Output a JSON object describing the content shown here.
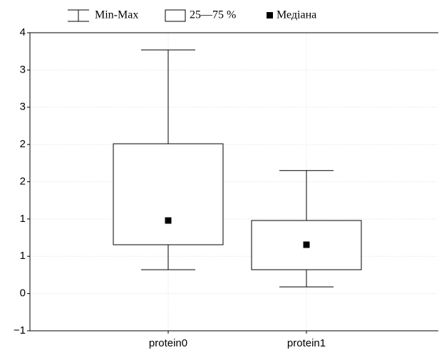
{
  "chart_data": {
    "type": "box",
    "legend": {
      "whisker": "Min-Max",
      "box": "25—75 %",
      "median": "Медіана"
    },
    "categories": [
      "protein0",
      "protein1"
    ],
    "min": [
      0.32,
      0.09
    ],
    "q1": [
      0.655,
      0.32
    ],
    "median": [
      0.98,
      0.655
    ],
    "q3": [
      2.01,
      0.98
    ],
    "max": [
      3.27,
      1.65
    ],
    "ylim": [
      -0.5,
      3.5
    ],
    "yticks": [
      {
        "value": 3.5,
        "label": "4"
      },
      3,
      {
        "value": 2.5,
        "label": "3"
      },
      2,
      {
        "value": 1.5,
        "label": "2"
      },
      1,
      {
        "value": 0.5,
        "label": "1"
      },
      0,
      {
        "value": -0.5,
        "label": "−1"
      }
    ],
    "grid": true
  }
}
